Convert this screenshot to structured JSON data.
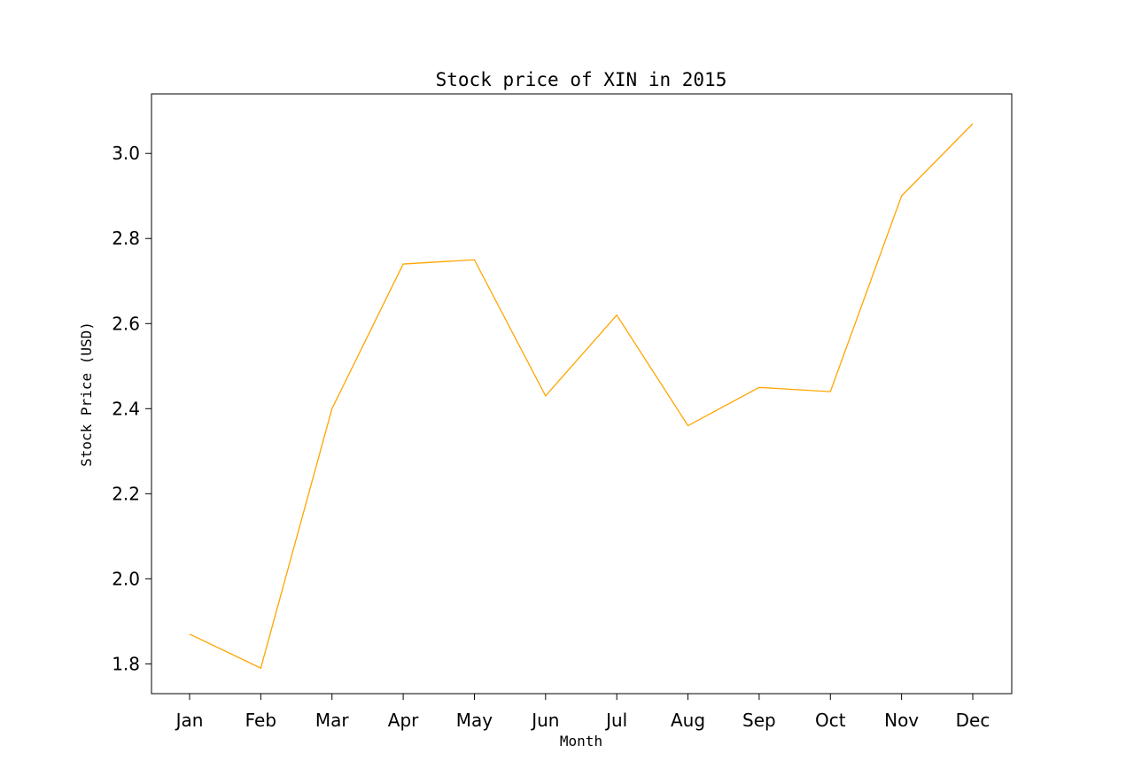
{
  "chart_data": {
    "type": "line",
    "title": "Stock price of XIN in 2015",
    "xlabel": "Month",
    "ylabel": "Stock Price (USD)",
    "categories": [
      "Jan",
      "Feb",
      "Mar",
      "Apr",
      "May",
      "Jun",
      "Jul",
      "Aug",
      "Sep",
      "Oct",
      "Nov",
      "Dec"
    ],
    "series": [
      {
        "values": [
          1.87,
          1.79,
          2.4,
          2.74,
          2.75,
          2.43,
          2.62,
          2.36,
          2.45,
          2.44,
          2.9,
          3.07
        ]
      }
    ],
    "ylim": [
      1.73,
      3.14
    ],
    "yticks": [
      "1.8",
      "2.0",
      "2.2",
      "2.4",
      "2.6",
      "2.8",
      "3.0"
    ],
    "grid": false,
    "line_color": "#ffa500"
  }
}
